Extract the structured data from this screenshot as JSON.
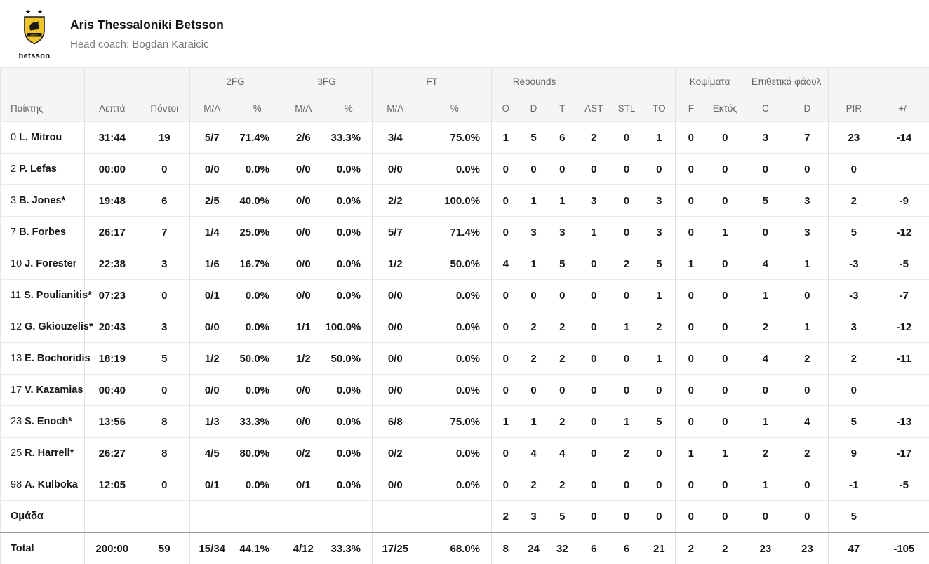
{
  "team": {
    "name": "Aris Thessaloniki Betsson",
    "coach_line": "Head coach: Bogdan Karaicic",
    "logo_text": "betsson"
  },
  "colors": {
    "brand_yellow": "#f0c52b",
    "logo_black": "#1a1a1a",
    "header_bg": "#f5f5f6",
    "total_rule": "#9b9b9b"
  },
  "table": {
    "groups": [
      {
        "label": "",
        "span": 1
      },
      {
        "label": "",
        "span": 2
      },
      {
        "label": "2FG",
        "span": 2
      },
      {
        "label": "3FG",
        "span": 2
      },
      {
        "label": "FT",
        "span": 2
      },
      {
        "label": "Rebounds",
        "span": 3
      },
      {
        "label": "",
        "span": 3
      },
      {
        "label": "Κοψίματα",
        "span": 2
      },
      {
        "label": "Επιθετικά φάουλ",
        "span": 2
      },
      {
        "label": "",
        "span": 2
      }
    ],
    "columns": [
      "Παίκτης",
      "Λεπτά",
      "Πόντοι",
      "M/A",
      "%",
      "M/A",
      "%",
      "M/A",
      "%",
      "O",
      "D",
      "T",
      "AST",
      "STL",
      "TO",
      "F",
      "Εκτός",
      "C",
      "D",
      "PIR",
      "+/-"
    ],
    "rows": [
      {
        "num": "0",
        "name": "L. Mitrou",
        "cells": [
          "31:44",
          "19",
          "5/7",
          "71.4%",
          "2/6",
          "33.3%",
          "3/4",
          "75.0%",
          "1",
          "5",
          "6",
          "2",
          "0",
          "1",
          "0",
          "0",
          "3",
          "7",
          "23",
          "-14"
        ]
      },
      {
        "num": "2",
        "name": "P. Lefas",
        "cells": [
          "00:00",
          "0",
          "0/0",
          "0.0%",
          "0/0",
          "0.0%",
          "0/0",
          "0.0%",
          "0",
          "0",
          "0",
          "0",
          "0",
          "0",
          "0",
          "0",
          "0",
          "0",
          "0",
          ""
        ]
      },
      {
        "num": "3",
        "name": "B. Jones*",
        "cells": [
          "19:48",
          "6",
          "2/5",
          "40.0%",
          "0/0",
          "0.0%",
          "2/2",
          "100.0%",
          "0",
          "1",
          "1",
          "3",
          "0",
          "3",
          "0",
          "0",
          "5",
          "3",
          "2",
          "-9"
        ]
      },
      {
        "num": "7",
        "name": "B. Forbes",
        "cells": [
          "26:17",
          "7",
          "1/4",
          "25.0%",
          "0/0",
          "0.0%",
          "5/7",
          "71.4%",
          "0",
          "3",
          "3",
          "1",
          "0",
          "3",
          "0",
          "1",
          "0",
          "3",
          "5",
          "-12"
        ]
      },
      {
        "num": "10",
        "name": "J. Forester",
        "cells": [
          "22:38",
          "3",
          "1/6",
          "16.7%",
          "0/0",
          "0.0%",
          "1/2",
          "50.0%",
          "4",
          "1",
          "5",
          "0",
          "2",
          "5",
          "1",
          "0",
          "4",
          "1",
          "-3",
          "-5"
        ]
      },
      {
        "num": "11",
        "name": "S. Poulianitis*",
        "cells": [
          "07:23",
          "0",
          "0/1",
          "0.0%",
          "0/0",
          "0.0%",
          "0/0",
          "0.0%",
          "0",
          "0",
          "0",
          "0",
          "0",
          "1",
          "0",
          "0",
          "1",
          "0",
          "-3",
          "-7"
        ]
      },
      {
        "num": "12",
        "name": "G. Gkiouzelis*",
        "cells": [
          "20:43",
          "3",
          "0/0",
          "0.0%",
          "1/1",
          "100.0%",
          "0/0",
          "0.0%",
          "0",
          "2",
          "2",
          "0",
          "1",
          "2",
          "0",
          "0",
          "2",
          "1",
          "3",
          "-12"
        ]
      },
      {
        "num": "13",
        "name": "E. Bochoridis",
        "cells": [
          "18:19",
          "5",
          "1/2",
          "50.0%",
          "1/2",
          "50.0%",
          "0/0",
          "0.0%",
          "0",
          "2",
          "2",
          "0",
          "0",
          "1",
          "0",
          "0",
          "4",
          "2",
          "2",
          "-11"
        ]
      },
      {
        "num": "17",
        "name": "V. Kazamias",
        "cells": [
          "00:40",
          "0",
          "0/0",
          "0.0%",
          "0/0",
          "0.0%",
          "0/0",
          "0.0%",
          "0",
          "0",
          "0",
          "0",
          "0",
          "0",
          "0",
          "0",
          "0",
          "0",
          "0",
          ""
        ]
      },
      {
        "num": "23",
        "name": "S. Enoch*",
        "cells": [
          "13:56",
          "8",
          "1/3",
          "33.3%",
          "0/0",
          "0.0%",
          "6/8",
          "75.0%",
          "1",
          "1",
          "2",
          "0",
          "1",
          "5",
          "0",
          "0",
          "1",
          "4",
          "5",
          "-13"
        ]
      },
      {
        "num": "25",
        "name": "R. Harrell*",
        "cells": [
          "26:27",
          "8",
          "4/5",
          "80.0%",
          "0/2",
          "0.0%",
          "0/2",
          "0.0%",
          "0",
          "4",
          "4",
          "0",
          "2",
          "0",
          "1",
          "1",
          "2",
          "2",
          "9",
          "-17"
        ]
      },
      {
        "num": "98",
        "name": "A. Kulboka",
        "cells": [
          "12:05",
          "0",
          "0/1",
          "0.0%",
          "0/1",
          "0.0%",
          "0/0",
          "0.0%",
          "0",
          "2",
          "2",
          "0",
          "0",
          "0",
          "0",
          "0",
          "1",
          "0",
          "-1",
          "-5"
        ]
      }
    ],
    "team_row": {
      "label": "Ομάδα",
      "cells": [
        "",
        "",
        "",
        "",
        "",
        "",
        "",
        "",
        "2",
        "3",
        "5",
        "0",
        "0",
        "0",
        "0",
        "0",
        "0",
        "0",
        "5",
        ""
      ]
    },
    "total_row": {
      "label": "Total",
      "cells": [
        "200:00",
        "59",
        "15/34",
        "44.1%",
        "4/12",
        "33.3%",
        "17/25",
        "68.0%",
        "8",
        "24",
        "32",
        "6",
        "6",
        "21",
        "2",
        "2",
        "23",
        "23",
        "47",
        "-105"
      ]
    }
  }
}
